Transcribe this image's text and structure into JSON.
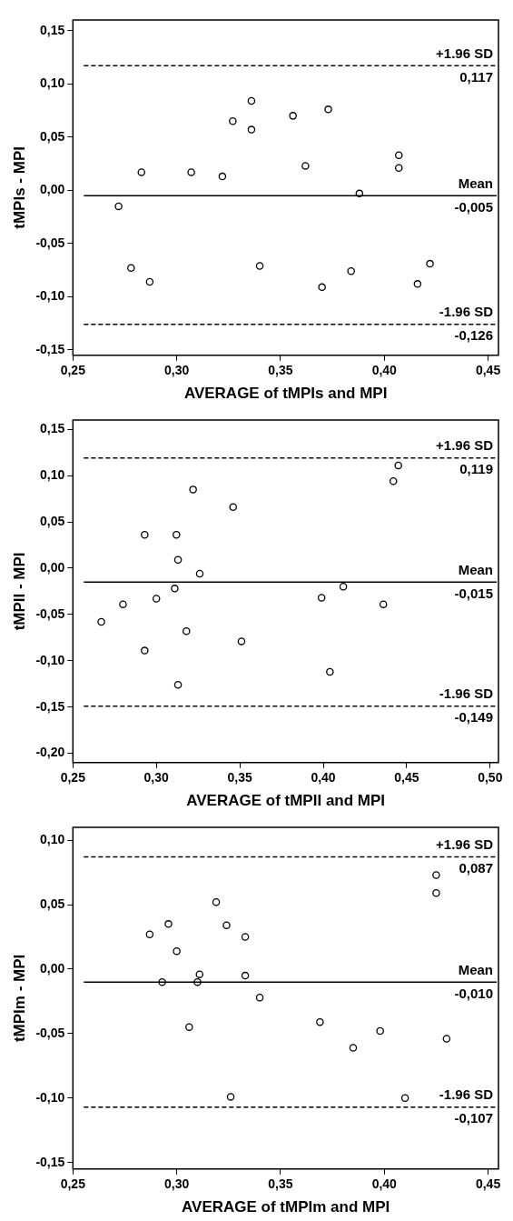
{
  "chart_data": [
    {
      "type": "scatter",
      "xlabel": "AVERAGE of tMPIs and MPI",
      "ylabel": "tMPIs - MPI",
      "marker": "circle",
      "grid": false,
      "xlim": [
        0.25,
        0.455
      ],
      "xticks": [
        {
          "value": 0.25,
          "label": "0,25"
        },
        {
          "value": 0.3,
          "label": "0,30"
        },
        {
          "value": 0.35,
          "label": "0,35"
        },
        {
          "value": 0.4,
          "label": "0,40"
        },
        {
          "value": 0.45,
          "label": "0,45"
        }
      ],
      "ylim": [
        -0.155,
        0.16
      ],
      "yticks": [
        {
          "value": -0.15,
          "label": "-0,15"
        },
        {
          "value": -0.1,
          "label": "-0,10"
        },
        {
          "value": -0.05,
          "label": "-0,05"
        },
        {
          "value": 0,
          "label": "0,00"
        },
        {
          "value": 0.05,
          "label": "0,05"
        },
        {
          "value": 0.1,
          "label": "0,10"
        },
        {
          "value": 0.15,
          "label": "0,15"
        }
      ],
      "series": [
        {
          "color": "#000000",
          "x": [
            0.272,
            0.278,
            0.283,
            0.287,
            0.307,
            0.322,
            0.327,
            0.336,
            0.336,
            0.34,
            0.356,
            0.362,
            0.37,
            0.373,
            0.384,
            0.388,
            0.407,
            0.407,
            0.416,
            0.422
          ],
          "values": [
            -0.015,
            -0.073,
            0.017,
            -0.086,
            0.017,
            0.013,
            0.065,
            0.084,
            0.057,
            -0.071,
            0.07,
            0.023,
            -0.091,
            0.076,
            -0.076,
            -0.003,
            0.033,
            0.021,
            -0.088,
            -0.069
          ]
        }
      ],
      "ref_lines": [
        {
          "axis": "y",
          "value": 0.117,
          "label": "+1.96 SD",
          "color": "#000000",
          "line_style": "dashed"
        },
        {
          "axis": "y",
          "value": -0.005,
          "label": "Mean",
          "color": "#000000",
          "line_style": "solid"
        },
        {
          "axis": "y",
          "value": -0.126,
          "label": "-1.96 SD",
          "color": "#000000",
          "line_style": "dashed"
        }
      ],
      "annotations": [
        {
          "text": "0,117",
          "y": 0.117
        },
        {
          "text": "-0,005",
          "y": -0.005
        },
        {
          "text": "-0,126",
          "y": -0.126
        }
      ]
    },
    {
      "type": "scatter",
      "xlabel": "AVERAGE of tMPII and MPI",
      "ylabel": "tMPII - MPI",
      "marker": "circle",
      "grid": false,
      "xlim": [
        0.25,
        0.505
      ],
      "xticks": [
        {
          "value": 0.25,
          "label": "0,25"
        },
        {
          "value": 0.3,
          "label": "0,30"
        },
        {
          "value": 0.35,
          "label": "0,35"
        },
        {
          "value": 0.4,
          "label": "0,40"
        },
        {
          "value": 0.45,
          "label": "0,45"
        },
        {
          "value": 0.5,
          "label": "0,50"
        }
      ],
      "ylim": [
        -0.21,
        0.16
      ],
      "yticks": [
        {
          "value": -0.2,
          "label": "-0,20"
        },
        {
          "value": -0.15,
          "label": "-0,15"
        },
        {
          "value": -0.1,
          "label": "-0,10"
        },
        {
          "value": -0.05,
          "label": "-0,05"
        },
        {
          "value": 0,
          "label": "0,00"
        },
        {
          "value": 0.05,
          "label": "0,05"
        },
        {
          "value": 0.1,
          "label": "0,10"
        },
        {
          "value": 0.15,
          "label": "0,15"
        }
      ],
      "series": [
        {
          "color": "#000000",
          "x": [
            0.267,
            0.28,
            0.293,
            0.293,
            0.3,
            0.311,
            0.312,
            0.313,
            0.313,
            0.318,
            0.322,
            0.326,
            0.346,
            0.351,
            0.399,
            0.404,
            0.412,
            0.436,
            0.442,
            0.445
          ],
          "values": [
            -0.058,
            -0.039,
            0.036,
            -0.089,
            -0.033,
            -0.022,
            0.036,
            0.009,
            -0.126,
            -0.068,
            0.085,
            -0.006,
            0.066,
            -0.079,
            -0.032,
            -0.112,
            -0.02,
            -0.039,
            0.094,
            0.111
          ]
        }
      ],
      "ref_lines": [
        {
          "axis": "y",
          "value": 0.119,
          "label": "+1.96 SD",
          "color": "#000000",
          "line_style": "dashed"
        },
        {
          "axis": "y",
          "value": -0.015,
          "label": "Mean",
          "color": "#000000",
          "line_style": "solid"
        },
        {
          "axis": "y",
          "value": -0.149,
          "label": "-1.96 SD",
          "color": "#000000",
          "line_style": "dashed"
        }
      ],
      "annotations": [
        {
          "text": "0,119",
          "y": 0.119
        },
        {
          "text": "-0,015",
          "y": -0.015
        },
        {
          "text": "-0,149",
          "y": -0.149
        }
      ]
    },
    {
      "type": "scatter",
      "xlabel": "AVERAGE of tMPIm and MPI",
      "ylabel": "tMPIm - MPI",
      "marker": "circle",
      "grid": false,
      "xlim": [
        0.25,
        0.455
      ],
      "xticks": [
        {
          "value": 0.25,
          "label": "0,25"
        },
        {
          "value": 0.3,
          "label": "0,30"
        },
        {
          "value": 0.35,
          "label": "0,35"
        },
        {
          "value": 0.4,
          "label": "0,40"
        },
        {
          "value": 0.45,
          "label": "0,45"
        }
      ],
      "ylim": [
        -0.155,
        0.11
      ],
      "yticks": [
        {
          "value": -0.15,
          "label": "-0,15"
        },
        {
          "value": -0.1,
          "label": "-0,10"
        },
        {
          "value": -0.05,
          "label": "-0,05"
        },
        {
          "value": 0,
          "label": "0,00"
        },
        {
          "value": 0.05,
          "label": "0,05"
        },
        {
          "value": 0.1,
          "label": "0,10"
        }
      ],
      "series": [
        {
          "color": "#000000",
          "x": [
            0.287,
            0.293,
            0.296,
            0.3,
            0.306,
            0.31,
            0.311,
            0.319,
            0.324,
            0.326,
            0.333,
            0.333,
            0.34,
            0.369,
            0.385,
            0.398,
            0.41,
            0.425,
            0.425,
            0.43
          ],
          "values": [
            0.027,
            -0.01,
            0.035,
            0.014,
            -0.045,
            -0.01,
            -0.004,
            0.052,
            0.034,
            -0.099,
            0.025,
            -0.005,
            -0.022,
            -0.041,
            -0.061,
            -0.048,
            -0.1,
            0.073,
            0.059,
            -0.054
          ]
        }
      ],
      "ref_lines": [
        {
          "axis": "y",
          "value": 0.087,
          "label": "+1.96 SD",
          "color": "#000000",
          "line_style": "dashed"
        },
        {
          "axis": "y",
          "value": -0.01,
          "label": "Mean",
          "color": "#000000",
          "line_style": "solid"
        },
        {
          "axis": "y",
          "value": -0.107,
          "label": "-1.96 SD",
          "color": "#000000",
          "line_style": "dashed"
        }
      ],
      "annotations": [
        {
          "text": "0,087",
          "y": 0.087
        },
        {
          "text": "-0,010",
          "y": -0.01
        },
        {
          "text": "-0,107",
          "y": -0.107
        }
      ]
    }
  ]
}
